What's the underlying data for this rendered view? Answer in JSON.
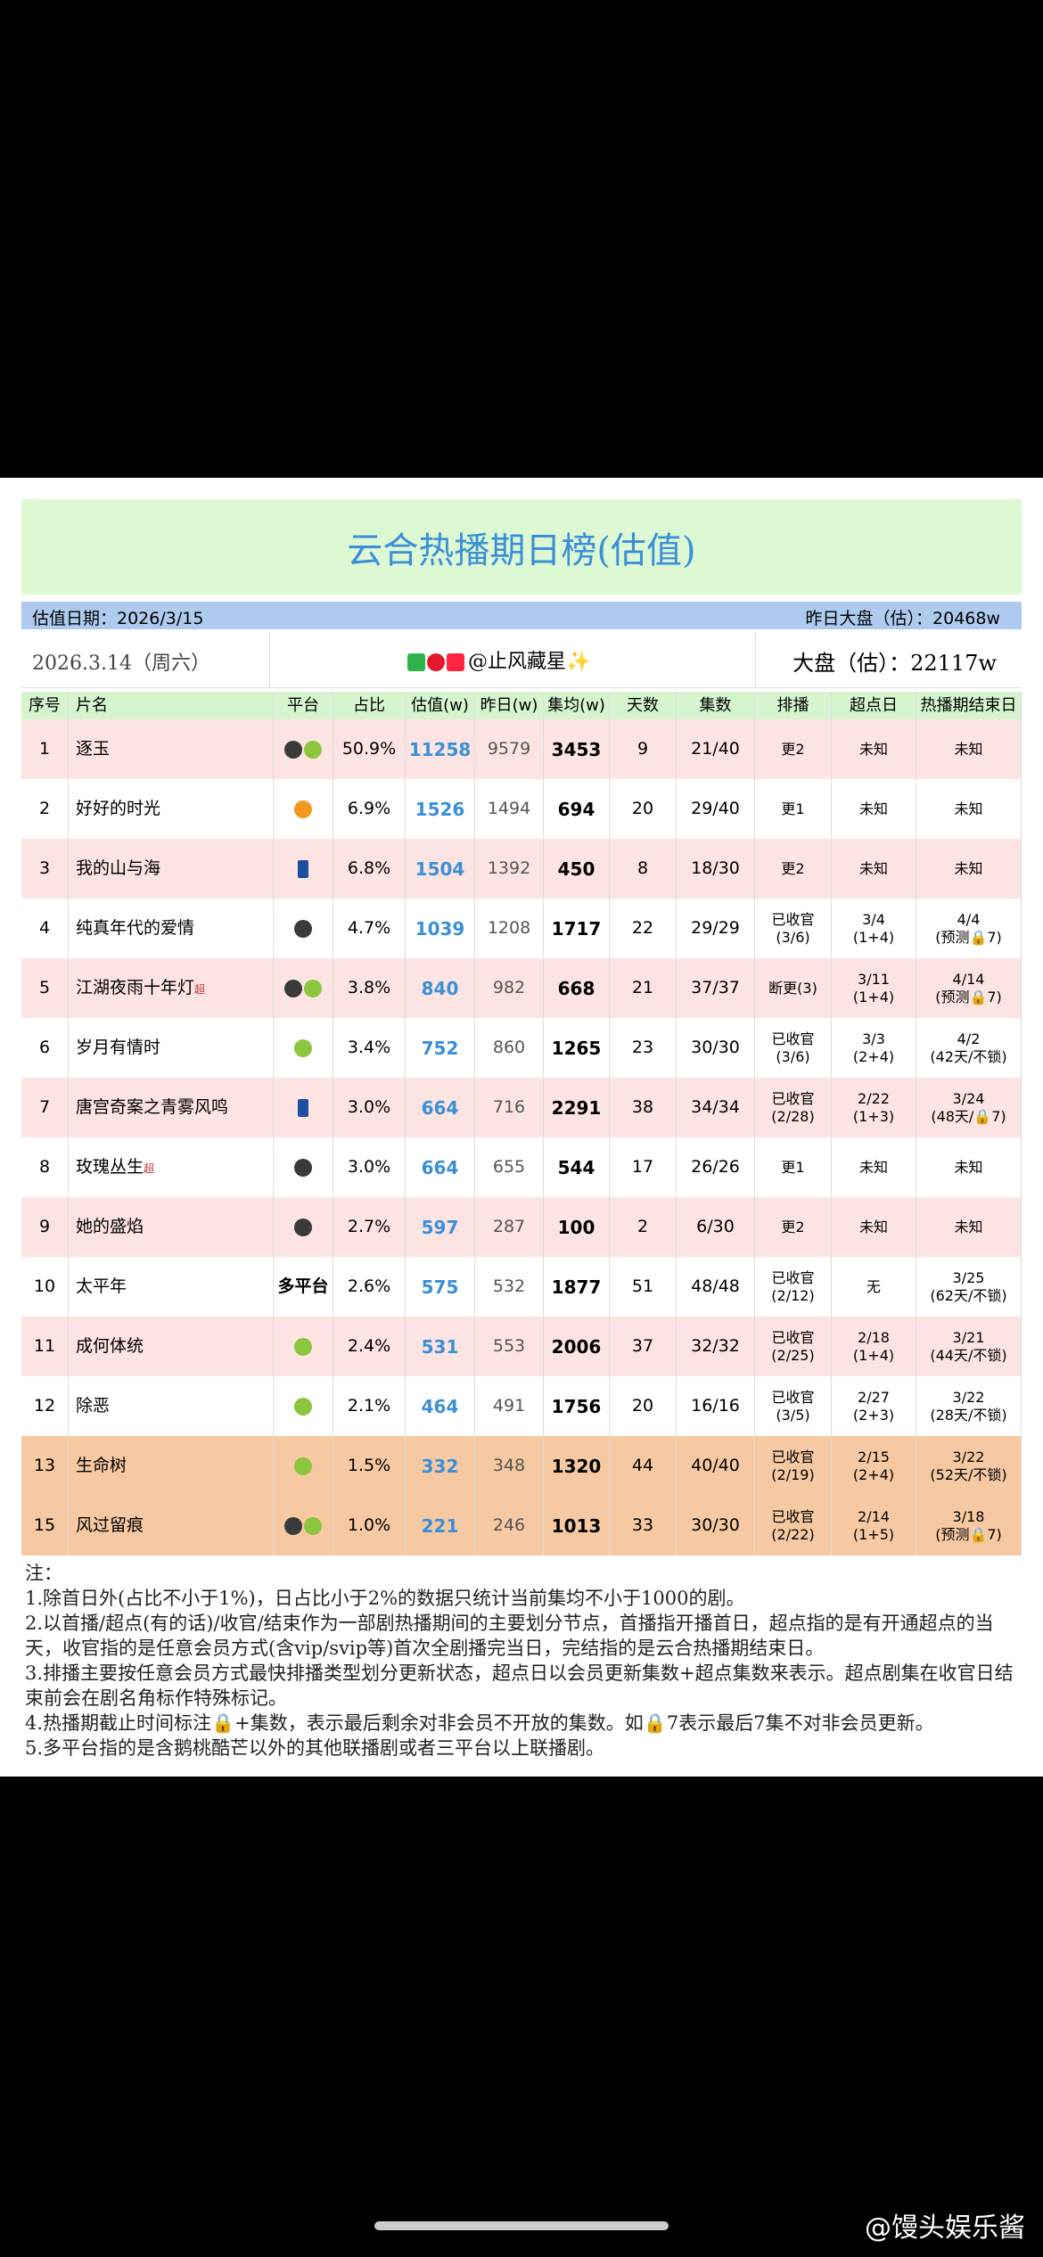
{
  "header": {
    "title": "云合热播期日榜(估值)",
    "valuation_date": "估值日期：2026/3/15",
    "yesterday_total": "昨日大盘（估）：20468w",
    "date": "2026.3.14（周六）",
    "author": "@止风藏星✨",
    "total": "大盘（估）：22117w"
  },
  "table": {
    "columns": [
      "序号",
      "片名",
      "平台",
      "占比",
      "估值(w)",
      "昨日(w)",
      "集均(w)",
      "天数",
      "集数",
      "排播",
      "超点日",
      "热播期结束日"
    ],
    "rows": [
      {
        "rank": 1,
        "name": "逐玉",
        "share": "50.9%",
        "est": 11258,
        "prev": 9579,
        "avg": 3453,
        "days": 9,
        "eps": "21/40",
        "schedule": "更2",
        "peak": "未知",
        "end": "未知"
      },
      {
        "rank": 2,
        "name": "好好的时光",
        "share": "6.9%",
        "est": 1526,
        "prev": 1494,
        "avg": 694,
        "days": 20,
        "eps": "29/40",
        "schedule": "更1",
        "peak": "未知",
        "end": "未知"
      },
      {
        "rank": 3,
        "name": "我的山与海",
        "share": "6.8%",
        "est": 1504,
        "prev": 1392,
        "avg": 450,
        "days": 8,
        "eps": "18/30",
        "schedule": "更2",
        "peak": "未知",
        "end": "未知"
      },
      {
        "rank": 4,
        "name": "纯真年代的爱情",
        "share": "4.7%",
        "est": 1039,
        "prev": 1208,
        "avg": 1717,
        "days": 22,
        "eps": "29/29",
        "schedule": [
          "已收官",
          "(3/6)"
        ],
        "peak": [
          "3/4",
          "(1+4)"
        ],
        "end": [
          "4/4",
          "(预测🔒7)"
        ]
      },
      {
        "rank": 5,
        "name": "江湖夜雨十年灯",
        "tag": "超",
        "share": "3.8%",
        "est": 840,
        "prev": 982,
        "avg": 668,
        "days": 21,
        "eps": "37/37",
        "schedule": "断更(3)",
        "peak": [
          "3/11",
          "(1+4)"
        ],
        "end": [
          "4/14",
          "(预测🔒7)"
        ]
      },
      {
        "rank": 6,
        "name": "岁月有情时",
        "share": "3.4%",
        "est": 752,
        "prev": 860,
        "avg": 1265,
        "days": 23,
        "eps": "30/30",
        "schedule": [
          "已收官",
          "(3/6)"
        ],
        "peak": [
          "3/3",
          "(2+4)"
        ],
        "end": [
          "4/2",
          "(42天/不锁)"
        ]
      },
      {
        "rank": 7,
        "name": "唐宫奇案之青雾风鸣",
        "share": "3.0%",
        "est": 664,
        "prev": 716,
        "avg": 2291,
        "days": 38,
        "eps": "34/34",
        "schedule": [
          "已收官",
          "(2/28)"
        ],
        "peak": [
          "2/22",
          "(1+3)"
        ],
        "end": [
          "3/24",
          "(48天/🔒7)"
        ]
      },
      {
        "rank": 8,
        "name": "玫瑰丛生",
        "tag": "超",
        "share": "3.0%",
        "est": 664,
        "prev": 655,
        "avg": 544,
        "days": 17,
        "eps": "26/26",
        "schedule": "更1",
        "peak": "未知",
        "end": "未知"
      },
      {
        "rank": 9,
        "name": "她的盛焰",
        "share": "2.7%",
        "est": 597,
        "prev": 287,
        "avg": 100,
        "days": 2,
        "eps": "6/30",
        "schedule": "更2",
        "peak": "未知",
        "end": "未知"
      },
      {
        "rank": 10,
        "name": "太平年",
        "platform": "多平台",
        "share": "2.6%",
        "est": 575,
        "prev": 532,
        "avg": 1877,
        "days": 51,
        "eps": "48/48",
        "schedule": [
          "已收官",
          "(2/12)"
        ],
        "peak": "无",
        "end": [
          "3/25",
          "(62天/不锁)"
        ]
      },
      {
        "rank": 11,
        "name": "成何体统",
        "share": "2.4%",
        "est": 531,
        "prev": 553,
        "avg": 2006,
        "days": 37,
        "eps": "32/32",
        "schedule": [
          "已收官",
          "(2/25)"
        ],
        "peak": [
          "2/18",
          "(1+4)"
        ],
        "end": [
          "3/21",
          "(44天/不锁)"
        ]
      },
      {
        "rank": 12,
        "name": "除恶",
        "share": "2.1%",
        "est": 464,
        "prev": 491,
        "avg": 1756,
        "days": 20,
        "eps": "16/16",
        "schedule": [
          "已收官",
          "(3/5)"
        ],
        "peak": [
          "2/27",
          "(2+3)"
        ],
        "end": [
          "3/22",
          "(28天/不锁)"
        ]
      },
      {
        "rank": 13,
        "name": "生命树",
        "share": "1.5%",
        "est": 332,
        "prev": 348,
        "avg": 1320,
        "days": 44,
        "eps": "40/40",
        "schedule": [
          "已收官",
          "(2/19)"
        ],
        "peak": [
          "2/15",
          "(2+4)"
        ],
        "end": [
          "3/22",
          "(52天/不锁)"
        ]
      },
      {
        "rank": 15,
        "name": "风过留痕",
        "share": "1.0%",
        "est": 221,
        "prev": 246,
        "avg": 1013,
        "days": 33,
        "eps": "30/30",
        "schedule": [
          "已收官",
          "(2/22)"
        ],
        "peak": [
          "2/14",
          "(1+5)"
        ],
        "end": [
          "3/18",
          "(预测🔒7)"
        ]
      }
    ]
  },
  "notes": [
    "注：",
    "1.除首日外(占比不小于1%)，日占比小于2%的数据只统计当前集均不小于1000的剧。",
    "2.以首播/超点(有的话)/收官/结束作为一部剧热播期间的主要划分节点，首播指开播首日，超点指的是有开通超点的当天，收官指的是任意会员方式(含vip/svip等)首次全剧播完当日，完结指的是云合热播期结束日。",
    "3.排播主要按任意会员方式最快排播类型划分更新状态，超点日以会员更新集数+超点集数来表示。超点剧集在收官日结束前会在剧名角标作特殊标记。",
    "4.热播期截止时间标注🔒+集数，表示最后剩余对非会员不开放的集数。如🔒7表示最后7集不对非会员更新。",
    "5.多平台指的是含鹅桃酷芒以外的其他联播剧或者三平台以上联播剧。"
  ],
  "watermark": "@馒头娱乐酱"
}
